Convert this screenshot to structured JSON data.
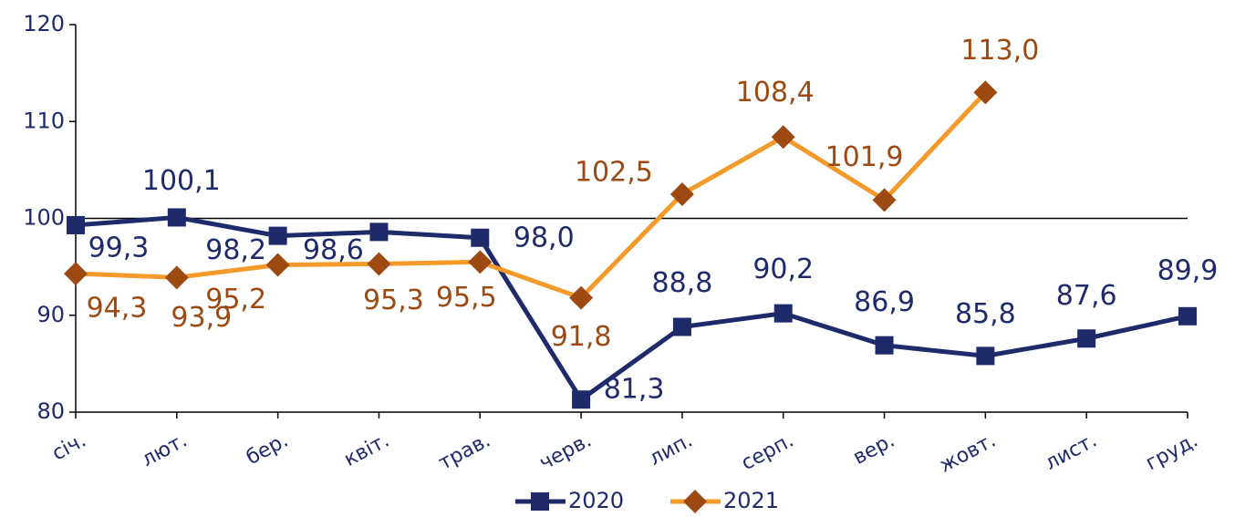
{
  "chart_data": {
    "type": "line",
    "categories": [
      "січ.",
      "лют.",
      "бер.",
      "квіт.",
      "трав.",
      "черв.",
      "лип.",
      "серп.",
      "вер.",
      "жовт.",
      "лист.",
      "груд."
    ],
    "series": [
      {
        "name": "2020",
        "color": "#1f2a6b",
        "marker": "square",
        "values": [
          99.3,
          100.1,
          98.2,
          98.6,
          98.0,
          81.3,
          88.8,
          90.2,
          86.9,
          85.8,
          87.6,
          89.9
        ],
        "value_labels": [
          "99,3",
          "100,1",
          "98,2",
          "98,6",
          "98,0",
          "81,3",
          "88,8",
          "90,2",
          "86,9",
          "85,8",
          "87,6",
          "89,9"
        ]
      },
      {
        "name": "2021",
        "color": "#f39a2a",
        "marker_color": "#9c4a12",
        "label_color": "#9c4a12",
        "marker": "diamond",
        "values": [
          94.3,
          93.9,
          95.2,
          95.3,
          95.5,
          91.8,
          102.5,
          108.4,
          101.9,
          113.0,
          null,
          null
        ],
        "value_labels": [
          "94,3",
          "93,9",
          "95,2",
          "95,3",
          "95,5",
          "91,8",
          "102,5",
          "108,4",
          "101,9",
          "113,0",
          null,
          null
        ]
      }
    ],
    "ylim": [
      80,
      120
    ],
    "yticks": [
      80,
      90,
      100,
      110,
      120
    ],
    "reference_line": 100,
    "legend": "bottom"
  }
}
